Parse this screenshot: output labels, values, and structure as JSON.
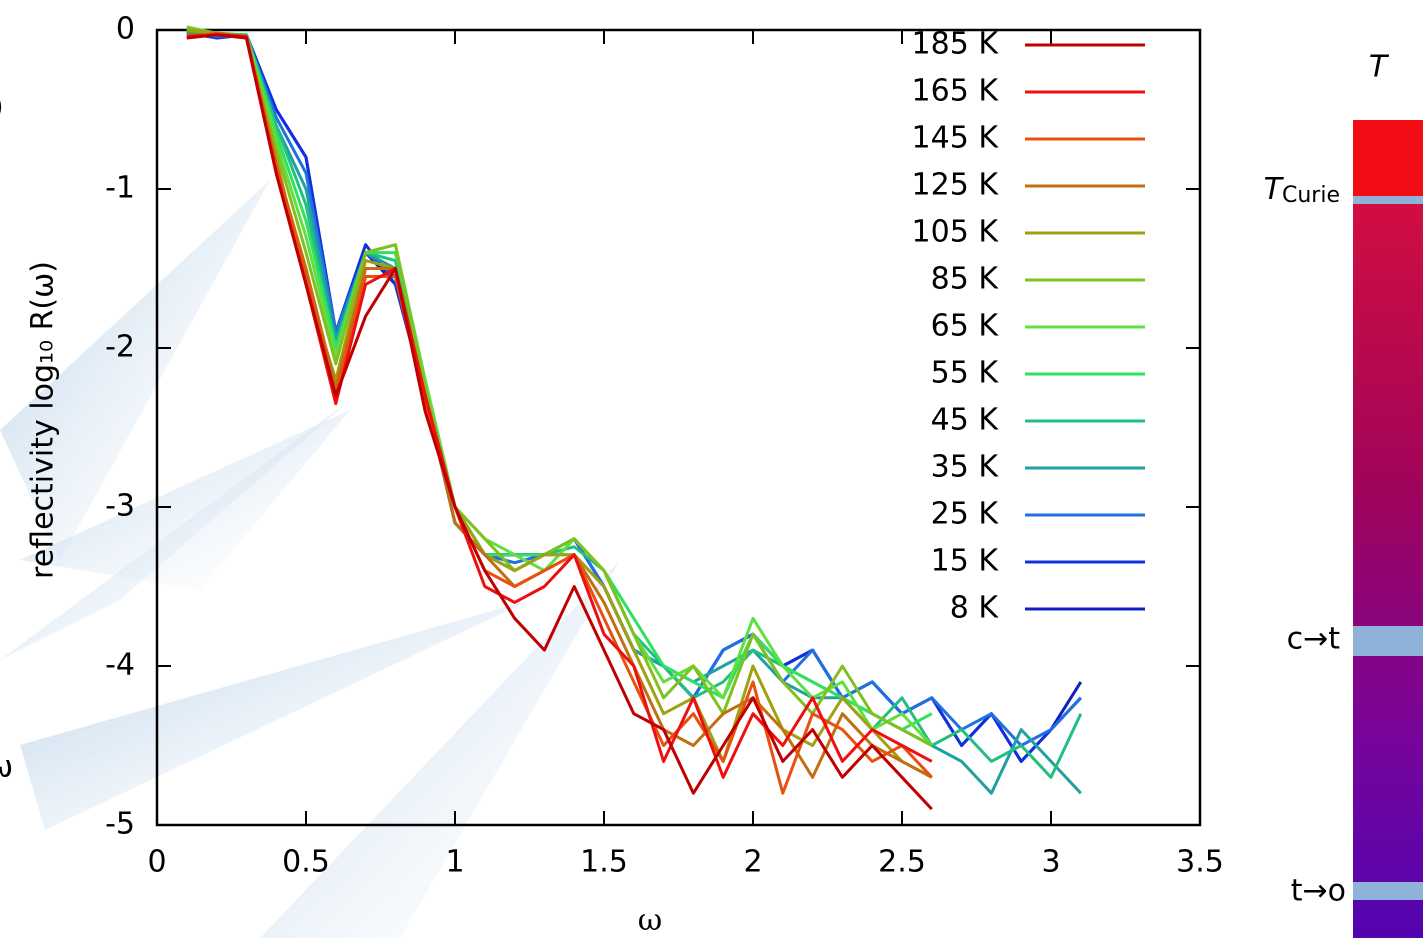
{
  "chart_data": {
    "type": "line",
    "xlabel": "ω",
    "ylabel": "reflectivity log₁₀ R(ω)",
    "xlim": [
      0,
      3.5
    ],
    "ylim": [
      -5,
      0
    ],
    "xticks": [
      0,
      0.5,
      1,
      1.5,
      2,
      2.5,
      3,
      3.5
    ],
    "yticks": [
      0,
      -1,
      -2,
      -3,
      -4,
      -5
    ],
    "legend": "upper-right",
    "x": [
      0.1,
      0.2,
      0.3,
      0.4,
      0.5,
      0.6,
      0.7,
      0.8,
      0.9,
      1.0,
      1.1,
      1.2,
      1.3,
      1.4,
      1.5,
      1.6,
      1.7,
      1.8,
      1.9,
      2.0,
      2.1,
      2.2,
      2.3,
      2.4,
      2.5,
      2.6,
      2.7,
      2.8,
      2.9,
      3.0,
      3.1
    ],
    "series": [
      {
        "name": "185 K",
        "color": "#c00000",
        "values": [
          -0.05,
          -0.03,
          -0.05,
          -0.9,
          -1.6,
          -2.3,
          -1.8,
          -1.5,
          -2.4,
          -3.0,
          -3.4,
          -3.7,
          -3.9,
          -3.5,
          -3.9,
          -4.3,
          -4.4,
          -4.8,
          -4.5,
          -4.2,
          -4.6,
          -4.4,
          -4.7,
          -4.5,
          -4.7,
          -4.9,
          null,
          null,
          null,
          null,
          null
        ]
      },
      {
        "name": "165 K",
        "color": "#ee1010",
        "values": [
          -0.04,
          -0.03,
          -0.04,
          -0.9,
          -1.6,
          -2.35,
          -1.6,
          -1.5,
          -2.3,
          -3.0,
          -3.5,
          -3.6,
          -3.5,
          -3.3,
          -3.8,
          -4.0,
          -4.6,
          -4.2,
          -4.7,
          -4.3,
          -4.5,
          -4.2,
          -4.6,
          -4.4,
          -4.5,
          -4.6,
          null,
          null,
          null,
          null,
          null
        ]
      },
      {
        "name": "145 K",
        "color": "#e85010",
        "values": [
          -0.05,
          -0.02,
          -0.04,
          -0.85,
          -1.55,
          -2.3,
          -1.55,
          -1.55,
          -2.35,
          -3.0,
          -3.4,
          -3.5,
          -3.4,
          -3.3,
          -3.7,
          -4.1,
          -4.5,
          -4.3,
          -4.6,
          -4.1,
          -4.8,
          -4.3,
          -4.4,
          -4.6,
          -4.5,
          -4.7,
          null,
          null,
          null,
          null,
          null
        ]
      },
      {
        "name": "125 K",
        "color": "#c07010",
        "values": [
          -0.03,
          -0.03,
          -0.05,
          -0.85,
          -1.5,
          -2.25,
          -1.5,
          -1.5,
          -2.3,
          -3.1,
          -3.3,
          -3.5,
          -3.4,
          -3.3,
          -3.6,
          -4.0,
          -4.4,
          -4.5,
          -4.3,
          -4.2,
          -4.4,
          -4.7,
          -4.3,
          -4.5,
          -4.6,
          -4.7,
          null,
          null,
          null,
          null,
          null
        ]
      },
      {
        "name": "105 K",
        "color": "#a0a010",
        "values": [
          0,
          -0.02,
          -0.05,
          -0.8,
          -1.6,
          -2.2,
          -1.45,
          -1.5,
          -2.3,
          -3.0,
          -3.3,
          -3.4,
          -3.3,
          -3.3,
          -3.5,
          -3.9,
          -4.3,
          -4.2,
          -4.6,
          -4.0,
          -4.4,
          -4.5,
          -4.2,
          -4.4,
          -4.6,
          -4.7,
          null,
          null,
          null,
          null,
          null
        ]
      },
      {
        "name": "85 K",
        "color": "#80c020",
        "values": [
          0.01,
          -0.02,
          -0.04,
          -0.75,
          -1.4,
          -2.1,
          -1.4,
          -1.35,
          -2.25,
          -3.0,
          -3.2,
          -3.4,
          -3.3,
          -3.2,
          -3.4,
          -3.8,
          -4.2,
          -4.0,
          -4.3,
          -3.8,
          -4.1,
          -4.3,
          -4.0,
          -4.3,
          -4.4,
          -4.5,
          null,
          null,
          null,
          null,
          null
        ]
      },
      {
        "name": "65 K",
        "color": "#60e040",
        "values": [
          0.02,
          -0.02,
          -0.04,
          -0.7,
          -1.3,
          -2.05,
          -1.4,
          -1.35,
          -2.2,
          -3.0,
          -3.2,
          -3.3,
          -3.4,
          -3.2,
          -3.4,
          -3.8,
          -4.1,
          -4.0,
          -4.2,
          -3.7,
          -4.0,
          -4.2,
          -4.1,
          -4.4,
          -4.3,
          -4.5,
          null,
          null,
          null,
          null,
          null
        ]
      },
      {
        "name": "55 K",
        "color": "#30e060",
        "values": [
          0.01,
          -0.02,
          -0.03,
          -0.65,
          -1.2,
          -2.0,
          -1.4,
          -1.4,
          -2.2,
          -3.0,
          -3.3,
          -3.3,
          -3.3,
          -3.2,
          -3.4,
          -3.7,
          -4.0,
          -4.1,
          -4.2,
          -3.8,
          -4.0,
          -4.1,
          -4.2,
          -4.3,
          -4.4,
          -4.3,
          null,
          null,
          null,
          null,
          null
        ]
      },
      {
        "name": "45 K",
        "color": "#20c080",
        "values": [
          0,
          -0.03,
          -0.03,
          -0.6,
          -1.1,
          -2.0,
          -1.4,
          -1.45,
          -2.25,
          -3.0,
          -3.3,
          -3.4,
          -3.3,
          -3.25,
          -3.4,
          -3.8,
          -4.0,
          -4.2,
          -4.1,
          -3.9,
          -4.0,
          -4.1,
          -4.2,
          -4.4,
          -4.2,
          -4.5,
          -4.4,
          -4.6,
          -4.5,
          -4.7,
          -4.3
        ]
      },
      {
        "name": "35 K",
        "color": "#20a0a0",
        "values": [
          -0.01,
          -0.03,
          -0.04,
          -0.6,
          -1.0,
          -1.95,
          -1.4,
          -1.5,
          -2.25,
          -3.0,
          -3.3,
          -3.4,
          -3.3,
          -3.3,
          -3.5,
          -3.9,
          -4.0,
          -4.1,
          -4.0,
          -3.9,
          -4.1,
          -4.2,
          -4.2,
          -4.3,
          -4.4,
          -4.5,
          -4.6,
          -4.8,
          -4.4,
          -4.6,
          -4.8
        ]
      },
      {
        "name": "25 K",
        "color": "#2070e0",
        "values": [
          -0.02,
          -0.04,
          -0.03,
          -0.55,
          -0.9,
          -1.9,
          -1.4,
          -1.55,
          -2.3,
          -3.1,
          -3.3,
          -3.35,
          -3.3,
          -3.2,
          -3.5,
          -3.9,
          -4.0,
          -4.2,
          -3.9,
          -3.8,
          -4.1,
          -3.9,
          -4.2,
          -4.1,
          -4.3,
          -4.2,
          -4.4,
          -4.3,
          -4.5,
          -4.4,
          -4.2
        ]
      },
      {
        "name": "15 K",
        "color": "#1030e0",
        "values": [
          -0.01,
          -0.05,
          -0.03,
          -0.5,
          -0.8,
          -1.9,
          -1.35,
          -1.6,
          -2.3,
          -3.1,
          -3.3,
          -3.3,
          -3.3,
          -3.2,
          -3.5,
          -3.9,
          -4.0,
          -4.2,
          -3.9,
          -3.8,
          -4.0,
          -3.9,
          -4.2,
          -4.1,
          -4.3,
          -4.2,
          -4.5,
          -4.3,
          -4.6,
          -4.4,
          -4.2
        ]
      },
      {
        "name": "8 K",
        "color": "#1020c0",
        "values": [
          -0.02,
          -0.05,
          -0.03,
          -0.5,
          -0.8,
          -1.9,
          -1.4,
          -1.6,
          -2.3,
          -3.1,
          -3.3,
          -3.3,
          -3.3,
          -3.2,
          -3.5,
          -3.9,
          -4.0,
          -4.2,
          -3.9,
          -3.8,
          -4.0,
          -3.9,
          -4.2,
          -4.1,
          -4.3,
          -4.2,
          -4.5,
          -4.3,
          -4.6,
          -4.4,
          -4.1
        ]
      }
    ],
    "colorbar": {
      "title": "T",
      "curie_symbol": "T",
      "curie_subscript": "Curie",
      "ct_label": "c→t",
      "to_label": "t→o"
    },
    "cropped_texts": [
      ")",
      "ω"
    ]
  }
}
